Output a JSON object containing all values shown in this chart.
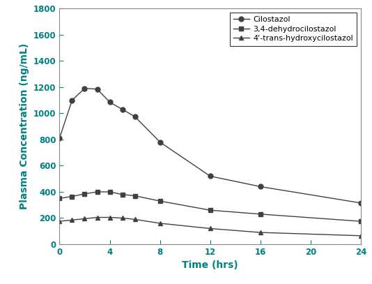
{
  "cilostazol_x": [
    0,
    1,
    2,
    3,
    4,
    5,
    6,
    8,
    12,
    16,
    24
  ],
  "cilostazol_y": [
    810,
    1100,
    1190,
    1185,
    1085,
    1030,
    975,
    780,
    520,
    440,
    315
  ],
  "dehydro_x": [
    0,
    1,
    2,
    3,
    4,
    5,
    6,
    8,
    12,
    16,
    24
  ],
  "dehydro_y": [
    350,
    365,
    385,
    400,
    400,
    380,
    370,
    330,
    260,
    230,
    175
  ],
  "hydroxy_x": [
    0,
    1,
    2,
    3,
    4,
    5,
    6,
    8,
    12,
    16,
    24
  ],
  "hydroxy_y": [
    175,
    185,
    195,
    205,
    205,
    200,
    190,
    160,
    120,
    90,
    65
  ],
  "xlabel": "Time (hrs)",
  "ylabel": "Plasma Concentration (ng/mL)",
  "ylim": [
    0,
    1800
  ],
  "xlim": [
    0,
    24
  ],
  "yticks": [
    0,
    200,
    400,
    600,
    800,
    1000,
    1200,
    1400,
    1600,
    1800
  ],
  "xticks": [
    0,
    4,
    8,
    12,
    16,
    20,
    24
  ],
  "legend_labels": [
    "Cilostazol",
    "3,4-dehydrocilostazol",
    "4'-trans-hydroxycilostazol"
  ],
  "line_color": "#404040",
  "text_color": "#008080",
  "marker_circle": "o",
  "marker_square": "s",
  "marker_triangle": "^",
  "marker_size": 5,
  "line_width": 1.0,
  "background_color": "#ffffff",
  "legend_fontsize": 8,
  "axis_label_fontsize": 10,
  "tick_fontsize": 8.5
}
